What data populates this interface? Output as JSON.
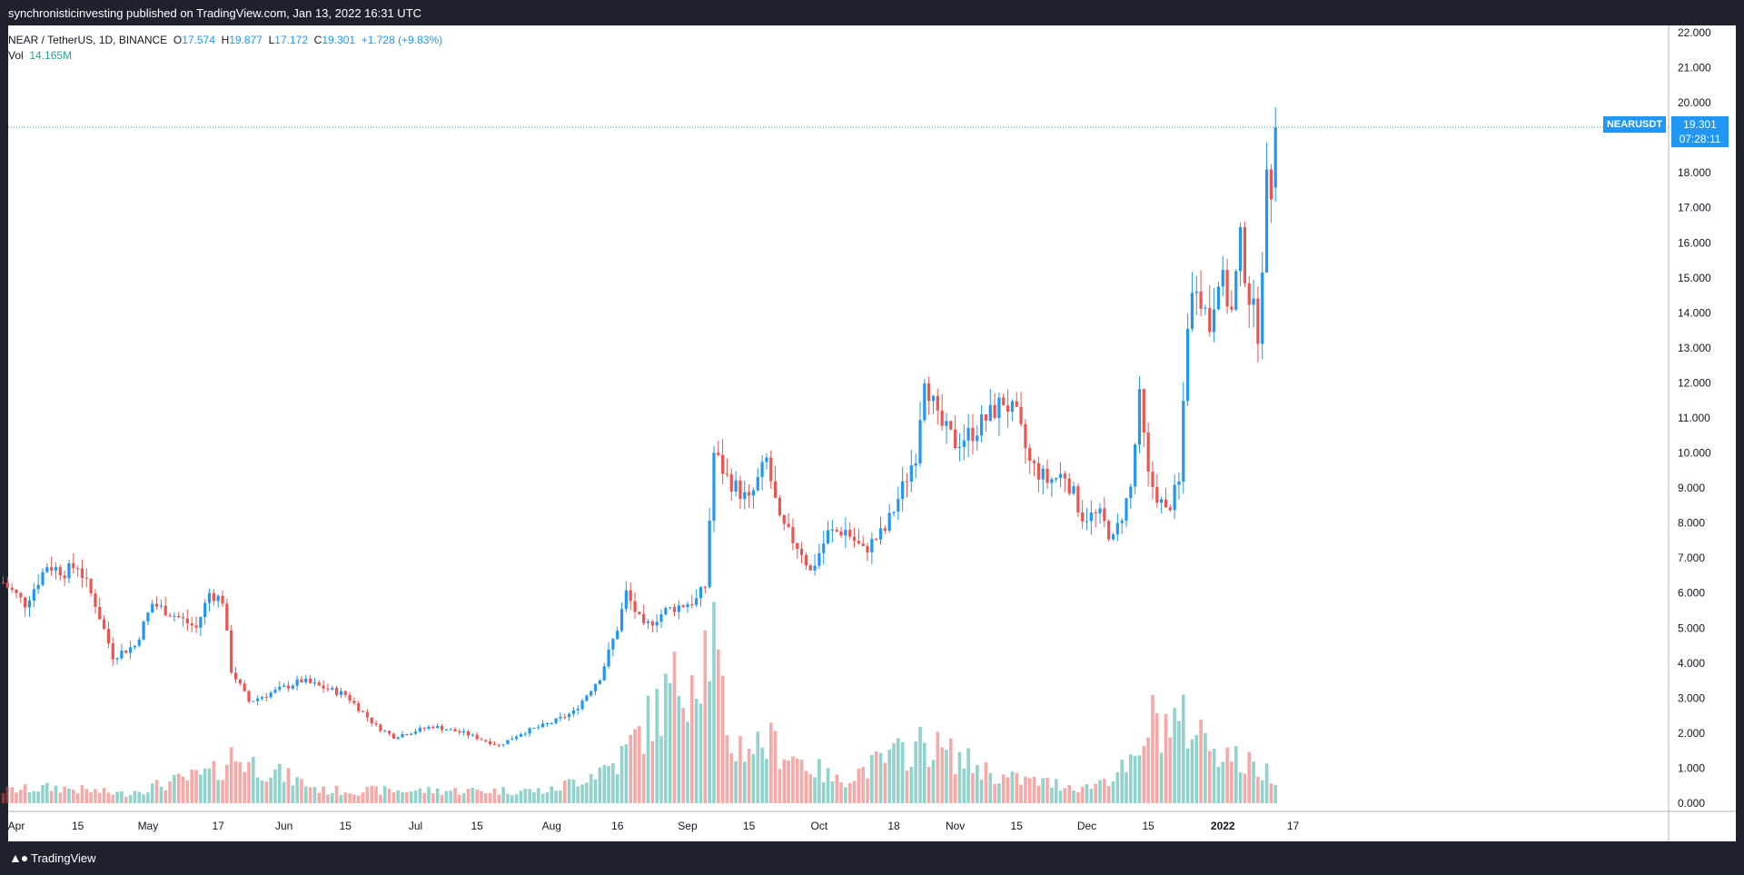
{
  "header": {
    "published_text": "synchronisticinvesting published on TradingView.com, Jan 13, 2022 16:31 UTC"
  },
  "legend": {
    "symbol": "NEAR / TetherUS, 1D, BINANCE",
    "open_label": "O",
    "open": "17.574",
    "high_label": "H",
    "high": "19.877",
    "low_label": "L",
    "low": "17.172",
    "close_label": "C",
    "close": "19.301",
    "change": "+1.728 (+9.83%)",
    "vol_label": "Vol",
    "vol": "14.165M"
  },
  "price_tag": {
    "symbol": "NEARUSDT",
    "price": "19.301",
    "countdown": "07:28:11"
  },
  "footer": {
    "logo_icon": "tradingview-logo-icon",
    "logo_text": "TradingView"
  },
  "colors": {
    "up": "#2196f3",
    "down": "#ef5350",
    "vol_up": "#26a69a",
    "vol_down": "#ef5350",
    "background": "#ffffff",
    "frame": "#1e222d"
  },
  "chart_data": {
    "type": "candlestick",
    "y_axis_ticks": [
      "22.000",
      "21.000",
      "20.000",
      "19.000",
      "18.000",
      "17.000",
      "16.000",
      "15.000",
      "14.000",
      "13.000",
      "12.000",
      "11.000",
      "10.000",
      "9.000",
      "8.000",
      "7.000",
      "6.000",
      "5.000",
      "4.000",
      "3.000",
      "2.000",
      "1.000",
      "0.000"
    ],
    "ylim": [
      0,
      22
    ],
    "x_axis_labels": [
      {
        "label": "Apr",
        "date": "2021-04-01"
      },
      {
        "label": "15",
        "date": "2021-04-15"
      },
      {
        "label": "May",
        "date": "2021-05-01"
      },
      {
        "label": "17",
        "date": "2021-05-17"
      },
      {
        "label": "Jun",
        "date": "2021-06-01"
      },
      {
        "label": "15",
        "date": "2021-06-15"
      },
      {
        "label": "Jul",
        "date": "2021-07-01"
      },
      {
        "label": "15",
        "date": "2021-07-15"
      },
      {
        "label": "Aug",
        "date": "2021-08-01"
      },
      {
        "label": "16",
        "date": "2021-08-16"
      },
      {
        "label": "Sep",
        "date": "2021-09-01"
      },
      {
        "label": "15",
        "date": "2021-09-15"
      },
      {
        "label": "Oct",
        "date": "2021-10-01"
      },
      {
        "label": "18",
        "date": "2021-10-18"
      },
      {
        "label": "Nov",
        "date": "2021-11-01"
      },
      {
        "label": "15",
        "date": "2021-11-15"
      },
      {
        "label": "Dec",
        "date": "2021-12-01"
      },
      {
        "label": "15",
        "date": "2021-12-15"
      },
      {
        "label": "2022",
        "date": "2022-01-01"
      },
      {
        "label": "17",
        "date": "2022-01-17"
      }
    ],
    "last_price_line": 19.301,
    "close_keypoints": [
      [
        "2021-03-29",
        6.3
      ],
      [
        "2021-04-03",
        5.7
      ],
      [
        "2021-04-08",
        6.8
      ],
      [
        "2021-04-12",
        6.6
      ],
      [
        "2021-04-15",
        6.8
      ],
      [
        "2021-04-19",
        5.7
      ],
      [
        "2021-04-23",
        4.2
      ],
      [
        "2021-04-28",
        4.5
      ],
      [
        "2021-05-02",
        5.7
      ],
      [
        "2021-05-08",
        5.3
      ],
      [
        "2021-05-12",
        5.0
      ],
      [
        "2021-05-15",
        6.0
      ],
      [
        "2021-05-18",
        5.8
      ],
      [
        "2021-05-20",
        3.8
      ],
      [
        "2021-05-24",
        2.9
      ],
      [
        "2021-06-01",
        3.3
      ],
      [
        "2021-06-05",
        3.5
      ],
      [
        "2021-06-15",
        3.1
      ],
      [
        "2021-06-22",
        2.2
      ],
      [
        "2021-06-26",
        1.9
      ],
      [
        "2021-07-05",
        2.2
      ],
      [
        "2021-07-12",
        2.0
      ],
      [
        "2021-07-20",
        1.65
      ],
      [
        "2021-07-25",
        2.0
      ],
      [
        "2021-08-01",
        2.3
      ],
      [
        "2021-08-06",
        2.6
      ],
      [
        "2021-08-12",
        3.6
      ],
      [
        "2021-08-16",
        5.0
      ],
      [
        "2021-08-18",
        6.0
      ],
      [
        "2021-08-22",
        5.0
      ],
      [
        "2021-08-27",
        5.5
      ],
      [
        "2021-09-03",
        5.8
      ],
      [
        "2021-09-05",
        6.2
      ],
      [
        "2021-09-07",
        10.0
      ],
      [
        "2021-09-10",
        9.3
      ],
      [
        "2021-09-15",
        8.6
      ],
      [
        "2021-09-19",
        9.8
      ],
      [
        "2021-09-22",
        8.0
      ],
      [
        "2021-09-27",
        7.2
      ],
      [
        "2021-09-29",
        6.6
      ],
      [
        "2021-10-03",
        7.7
      ],
      [
        "2021-10-07",
        7.8
      ],
      [
        "2021-10-11",
        7.2
      ],
      [
        "2021-10-16",
        7.8
      ],
      [
        "2021-10-20",
        9.0
      ],
      [
        "2021-10-23",
        10.0
      ],
      [
        "2021-10-25",
        12.3
      ],
      [
        "2021-10-28",
        10.9
      ],
      [
        "2021-11-01",
        10.3
      ],
      [
        "2021-11-05",
        10.6
      ],
      [
        "2021-11-09",
        11.1
      ],
      [
        "2021-11-12",
        11.5
      ],
      [
        "2021-11-15",
        11.0
      ],
      [
        "2021-11-18",
        9.7
      ],
      [
        "2021-11-22",
        9.2
      ],
      [
        "2021-11-26",
        9.4
      ],
      [
        "2021-11-30",
        8.2
      ],
      [
        "2021-12-04",
        8.2
      ],
      [
        "2021-12-07",
        7.5
      ],
      [
        "2021-12-11",
        9.0
      ],
      [
        "2021-12-13",
        11.5
      ],
      [
        "2021-12-15",
        9.3
      ],
      [
        "2021-12-19",
        8.3
      ],
      [
        "2021-12-22",
        9.1
      ],
      [
        "2021-12-24",
        13.8
      ],
      [
        "2021-12-26",
        15.0
      ],
      [
        "2021-12-29",
        13.6
      ],
      [
        "2021-12-31",
        15.2
      ],
      [
        "2022-01-03",
        14.0
      ],
      [
        "2022-01-05",
        16.0
      ],
      [
        "2022-01-07",
        14.5
      ],
      [
        "2022-01-09",
        13.5
      ],
      [
        "2022-01-11",
        17.6
      ],
      [
        "2022-01-12",
        17.574
      ],
      [
        "2022-01-13",
        19.301
      ]
    ],
    "volume_keypoints": [
      [
        "2021-03-29",
        0.4
      ],
      [
        "2021-04-10",
        0.5
      ],
      [
        "2021-04-25",
        0.3
      ],
      [
        "2021-05-17",
        1.0
      ],
      [
        "2021-05-20",
        1.5
      ],
      [
        "2021-06-10",
        0.4
      ],
      [
        "2021-07-10",
        0.4
      ],
      [
        "2021-08-01",
        0.4
      ],
      [
        "2021-08-16",
        1.3
      ],
      [
        "2021-09-07",
        5.3
      ],
      [
        "2021-09-10",
        1.8
      ],
      [
        "2021-09-20",
        1.9
      ],
      [
        "2021-10-05",
        0.7
      ],
      [
        "2021-10-25",
        1.9
      ],
      [
        "2021-11-12",
        0.8
      ],
      [
        "2021-12-01",
        0.5
      ],
      [
        "2021-12-13",
        1.3
      ],
      [
        "2021-12-15",
        2.6
      ],
      [
        "2021-12-24",
        2.5
      ],
      [
        "2022-01-05",
        1.3
      ],
      [
        "2022-01-13",
        0.9
      ]
    ]
  }
}
